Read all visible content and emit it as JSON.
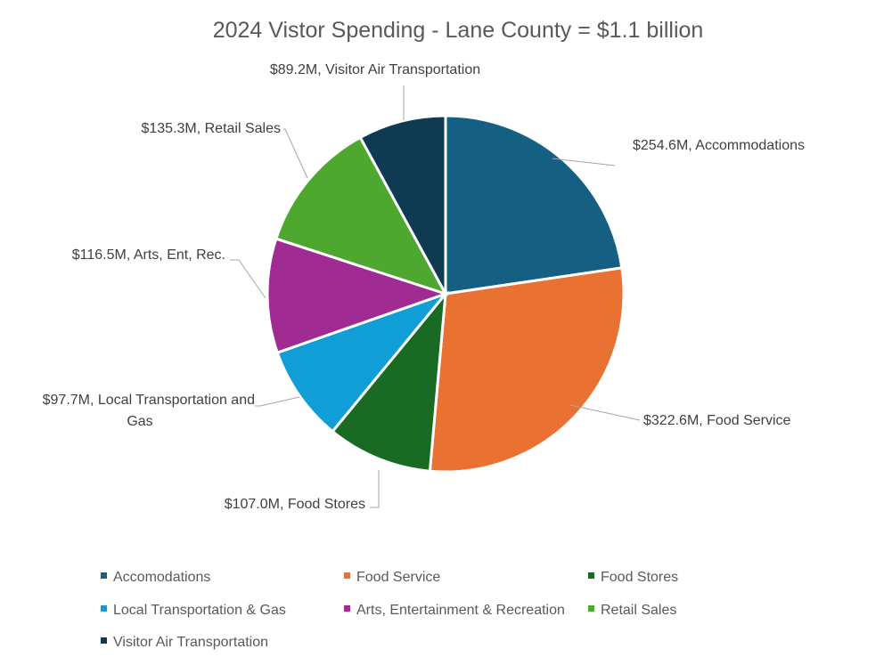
{
  "chart_data": {
    "type": "pie",
    "title": "2024 Vistor Spending - Lane County = $1.1 billion",
    "unit": "$M",
    "start_angle": "top",
    "direction": "clockwise",
    "legend_position": "bottom",
    "slices": [
      {
        "name": "Accomodations",
        "value": 254.6,
        "label": "$254.6M,  Accommodations",
        "color": "#156082"
      },
      {
        "name": "Food Service",
        "value": 322.6,
        "label": "$322.6M, Food Service",
        "color": "#E97132"
      },
      {
        "name": "Food Stores",
        "value": 107.0,
        "label": "$107.0M, Food Stores",
        "color": "#196B24"
      },
      {
        "name": "Local Transportation & Gas",
        "value": 97.7,
        "label": "$97.7M, Local Transportation and|Gas",
        "color": "#0F9ED5"
      },
      {
        "name": "Arts, Entertainment & Recreation",
        "value": 116.5,
        "label": "$116.5M, Arts, Ent, Rec.",
        "color": "#A02B93"
      },
      {
        "name": "Retail Sales",
        "value": 135.3,
        "label": "$135.3M, Retail Sales",
        "color": "#4EA72E"
      },
      {
        "name": "Visitor Air Transportation",
        "value": 89.2,
        "label": "$89.2M, Visitor Air Transportation",
        "color": "#0E3A52"
      }
    ]
  }
}
